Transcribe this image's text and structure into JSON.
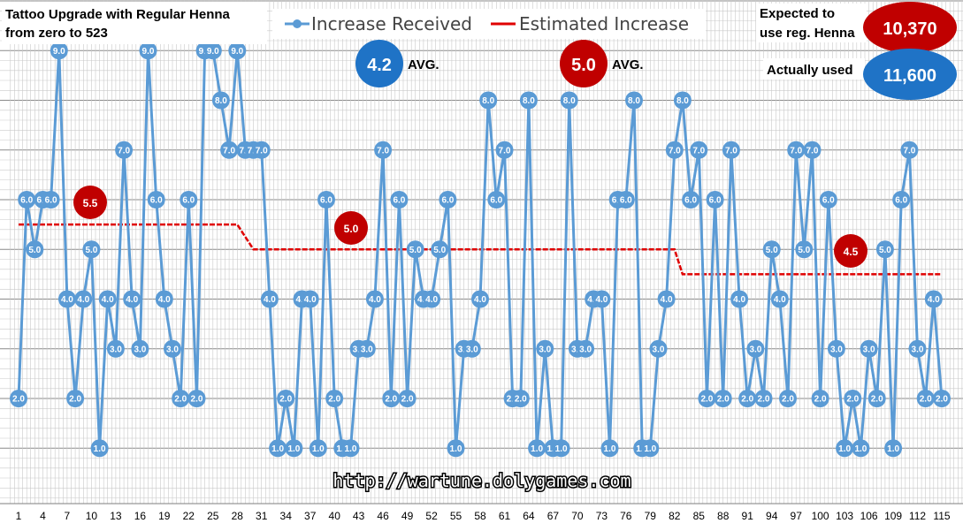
{
  "chart_data": {
    "type": "line",
    "title_lines": [
      "Tattoo Upgrade with Regular Henna",
      "from zero to 523"
    ],
    "legend": {
      "received": "Increase Received",
      "estimated": "Estimated Increase"
    },
    "colors": {
      "received": "#5b9bd5",
      "estimated": "#e00000",
      "blue_badge": "#1f73c6",
      "red_badge": "#c00000",
      "grid": "#c9c9c9"
    },
    "ylim": [
      0.5,
      10.0
    ],
    "x_tick_labels": [
      "1",
      "4",
      "7",
      "10",
      "13",
      "16",
      "19",
      "22",
      "25",
      "28",
      "31",
      "34",
      "37",
      "40",
      "43",
      "46",
      "49",
      "52",
      "55",
      "58",
      "61",
      "64",
      "67",
      "70",
      "73",
      "76",
      "79",
      "82",
      "85",
      "88",
      "91",
      "94",
      "97",
      "100",
      "103",
      "106",
      "109",
      "112",
      "115"
    ],
    "series": [
      {
        "name": "Increase Received",
        "values": [
          2,
          6,
          5,
          6,
          6,
          9,
          4,
          2,
          4,
          5,
          1,
          4,
          3,
          7,
          4,
          3,
          9,
          6,
          4,
          3,
          2,
          6,
          2,
          9,
          9,
          8,
          7,
          9,
          7,
          7,
          7,
          4,
          1,
          2,
          1,
          4,
          4,
          1,
          6,
          2,
          1,
          1,
          3,
          3,
          4,
          7,
          2,
          6,
          2,
          5,
          4,
          4,
          5,
          6,
          1,
          3,
          3,
          4,
          8,
          6,
          7,
          2,
          2,
          8,
          1,
          3,
          1,
          1,
          8,
          3,
          3,
          4,
          4,
          1,
          6,
          6,
          8,
          1,
          1,
          3,
          4,
          7,
          8,
          6,
          7,
          2,
          6,
          2,
          7,
          4,
          2,
          3,
          2,
          5,
          4,
          2,
          7,
          5,
          7,
          2,
          6,
          3,
          1,
          2,
          1,
          3,
          2,
          5,
          1,
          6,
          7,
          3,
          2,
          4,
          2
        ]
      },
      {
        "name": "Estimated Increase",
        "segments": [
          {
            "x_from": 1,
            "x_to": 28,
            "value": 5.5
          },
          {
            "x_from": 30,
            "x_to": 82,
            "value": 5.0
          },
          {
            "x_from": 83,
            "x_to": 115,
            "value": 4.5
          }
        ]
      }
    ],
    "segment_badges": [
      "5.5",
      "5.0",
      "4.5"
    ],
    "avg_badges": [
      {
        "value": "4.2",
        "label": "AVG."
      },
      {
        "value": "5.0",
        "label": "AVG."
      }
    ],
    "summary": [
      {
        "label_lines": [
          "Expected to",
          "use reg. Henna"
        ],
        "value": "10,370"
      },
      {
        "label_lines": [
          "Actually used"
        ],
        "value": "11,600"
      }
    ],
    "watermark": "http://wartune.dolygames.com"
  }
}
